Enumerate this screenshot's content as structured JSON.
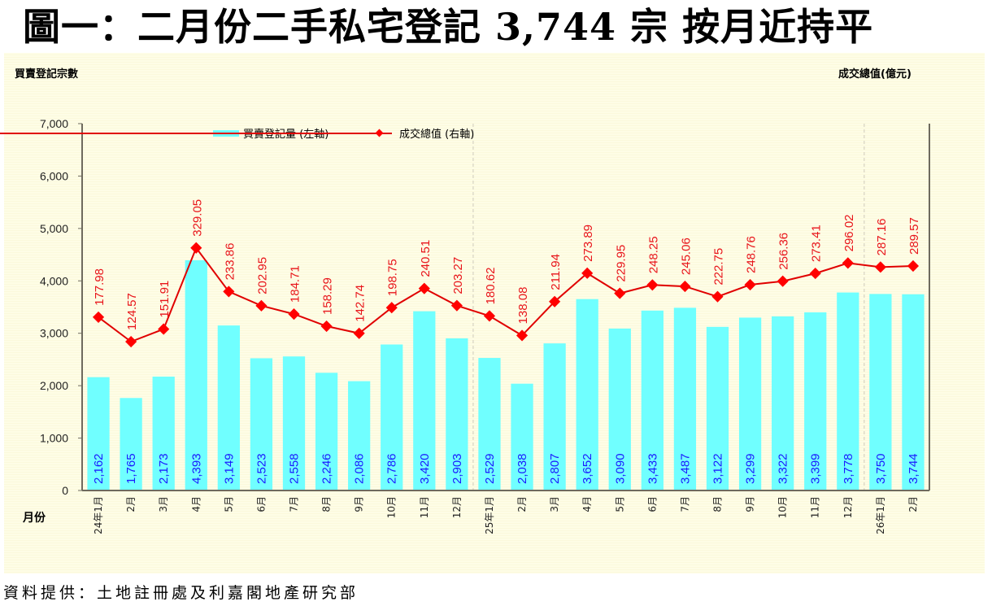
{
  "title": "圖一：二月份二手私宅登記 3,744 宗 按月近持平",
  "source": "資料提供：土地註冊處及利嘉閣地產研究部",
  "colors": {
    "bar": "#70ffff",
    "line": "#e00000",
    "marker": "#ff0000",
    "bar_label": "#1a1aff",
    "line_label": "#e8141a",
    "panel": "#fefde6"
  },
  "chart_data": {
    "type": "bar+line",
    "title": "圖一：二月份二手私宅登記 3,744 宗 按月近持平",
    "ylabel": "買賣登記宗數",
    "y2label": "成交總值(億元)",
    "xlabel": "月份",
    "ylim": [
      0,
      7000
    ],
    "y2lim": [
      -200,
      600
    ],
    "yticks": [
      0,
      1000,
      2000,
      3000,
      4000,
      5000,
      6000,
      7000
    ],
    "ytick_labels": [
      "0",
      "1,000",
      "2,000",
      "3,000",
      "4,000",
      "5,000",
      "6,000",
      "7,000"
    ],
    "grid": false,
    "legend_position": "top-left",
    "categories": [
      "24年1月",
      "2月",
      "3月",
      "4月",
      "5月",
      "6月",
      "7月",
      "8月",
      "9月",
      "10月",
      "11月",
      "12月",
      "25年1月",
      "2月",
      "3月",
      "4月",
      "5月",
      "6月",
      "7月",
      "8月",
      "9月",
      "10月",
      "11月",
      "12月",
      "26年1月",
      "2月"
    ],
    "year_separators_after_index": [
      11,
      23
    ],
    "series": [
      {
        "name": "買賣登記量 (左軸)",
        "type": "bar",
        "axis": "left",
        "values": [
          2162,
          1765,
          2173,
          4393,
          3149,
          2523,
          2558,
          2246,
          2086,
          2786,
          3420,
          2903,
          2529,
          2038,
          2807,
          3652,
          3090,
          3433,
          3487,
          3122,
          3299,
          3322,
          3399,
          3778,
          3750,
          3744
        ],
        "labels": [
          "2,162",
          "1,765",
          "2,173",
          "4,393",
          "3,149",
          "2,523",
          "2,558",
          "2,246",
          "2,086",
          "2,786",
          "3,420",
          "2,903",
          "2,529",
          "2,038",
          "2,807",
          "3,652",
          "3,090",
          "3,433",
          "3,487",
          "3,122",
          "3,299",
          "3,322",
          "3,399",
          "3,778",
          "3,750",
          "3,744"
        ]
      },
      {
        "name": "成交總值 (右軸)",
        "type": "line",
        "axis": "right",
        "values": [
          177.98,
          124.57,
          151.91,
          329.05,
          233.86,
          202.95,
          184.71,
          158.29,
          142.74,
          198.75,
          240.51,
          203.27,
          180.62,
          138.08,
          211.94,
          273.89,
          229.95,
          248.25,
          245.06,
          222.75,
          248.76,
          256.36,
          273.41,
          296.02,
          287.16,
          289.57
        ],
        "labels": [
          "177.98",
          "124.57",
          "151.91",
          "329.05",
          "233.86",
          "202.95",
          "184.71",
          "158.29",
          "142.74",
          "198.75",
          "240.51",
          "203.27",
          "180.62",
          "138.08",
          "211.94",
          "273.89",
          "229.95",
          "248.25",
          "245.06",
          "222.75",
          "248.76",
          "256.36",
          "273.41",
          "296.02",
          "287.16",
          "289.57"
        ]
      }
    ]
  }
}
